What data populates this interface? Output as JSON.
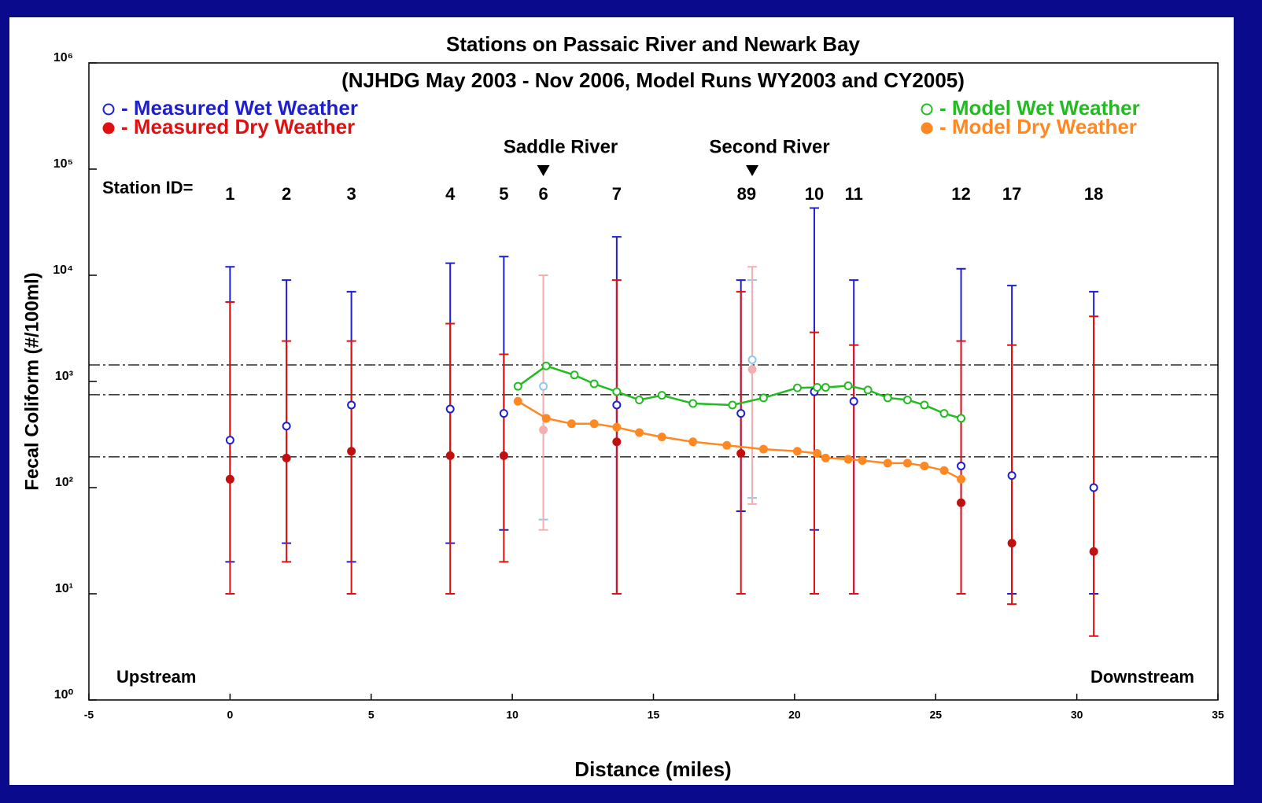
{
  "chart_data": {
    "type": "scatter",
    "title": "Stations on Passaic River and Newark Bay",
    "subtitle": "(NJHDG May 2003 - Nov 2006, Model Runs WY2003 and CY2005)",
    "x_label": "Distance (miles)",
    "y_label": "Fecal Coliform (#/100ml)",
    "xlim": [
      -5,
      35
    ],
    "xticks": [
      -5,
      0,
      5,
      10,
      15,
      20,
      25,
      30,
      35
    ],
    "ylim": [
      1,
      1000000
    ],
    "y_log": true,
    "yticks": [
      {
        "value": 1,
        "label": "10⁰"
      },
      {
        "value": 10,
        "label": "10¹"
      },
      {
        "value": 100,
        "label": "10²"
      },
      {
        "value": 1000,
        "label": "10³"
      },
      {
        "value": 10000,
        "label": "10⁴"
      },
      {
        "value": 100000,
        "label": "10⁵"
      },
      {
        "value": 1000000,
        "label": "10⁶"
      }
    ],
    "reference_lines": [
      1430,
      750,
      195
    ],
    "station_prefix": "Station ID=",
    "stations": [
      {
        "x": 0,
        "label": "1"
      },
      {
        "x": 2,
        "label": "2"
      },
      {
        "x": 4.3,
        "label": "3"
      },
      {
        "x": 7.8,
        "label": "4"
      },
      {
        "x": 9.7,
        "label": "5"
      },
      {
        "x": 11.1,
        "label": "6"
      },
      {
        "x": 13.7,
        "label": "7"
      },
      {
        "x": 18.3,
        "label": "89"
      },
      {
        "x": 20.7,
        "label": "10"
      },
      {
        "x": 22.1,
        "label": "11"
      },
      {
        "x": 25.9,
        "label": "12"
      },
      {
        "x": 27.7,
        "label": "17"
      },
      {
        "x": 30.6,
        "label": "18"
      }
    ],
    "rivers": [
      {
        "x": 11.1,
        "label": "Saddle River"
      },
      {
        "x": 18.5,
        "label": "Second River"
      }
    ],
    "upstream_label": "Upstream",
    "downstream_label": "Downstream",
    "series": [
      {
        "name": "- Measured Wet Weather",
        "kind": "measured",
        "marker": "open",
        "legend_corner": "top-left",
        "color": "#1f1fd0",
        "x": [
          0,
          2,
          4.3,
          7.8,
          9.7,
          11.1,
          13.7,
          18.1,
          18.5,
          20.7,
          22.1,
          25.9,
          27.7,
          30.6
        ],
        "values": [
          280,
          380,
          600,
          550,
          500,
          900,
          600,
          500,
          1600,
          800,
          650,
          160,
          130,
          100
        ],
        "lower": [
          20,
          30,
          20,
          30,
          40,
          50,
          10,
          60,
          80,
          40,
          10,
          10,
          10,
          10
        ],
        "upper": [
          12000,
          9000,
          7000,
          13000,
          15000,
          10000,
          23000,
          9000,
          9000,
          43000,
          9000,
          11500,
          8000,
          7000
        ],
        "point_colors": [
          "#1f1fd0",
          "#1f1fd0",
          "#1f1fd0",
          "#1f1fd0",
          "#1f1fd0",
          "#8fc8e8",
          "#1f1fd0",
          "#1f1fd0",
          "#8fc8e8",
          "#1f1fd0",
          "#1f1fd0",
          "#1f1fd0",
          "#1f1fd0",
          "#1f1fd0"
        ]
      },
      {
        "name": "- Measured Dry Weather",
        "kind": "measured",
        "marker": "filled",
        "legend_corner": "top-left",
        "color": "#e01010",
        "x": [
          0,
          2,
          4.3,
          7.8,
          9.7,
          11.1,
          13.7,
          18.1,
          18.5,
          20.7,
          22.1,
          25.9,
          27.7,
          30.6
        ],
        "values": [
          120,
          190,
          220,
          200,
          200,
          350,
          270,
          210,
          1300,
          null,
          null,
          72,
          30,
          25
        ],
        "lower": [
          10,
          20,
          10,
          10,
          20,
          40,
          10,
          10,
          70,
          10,
          10,
          10,
          8,
          4
        ],
        "upper": [
          5600,
          2400,
          2400,
          3500,
          1800,
          10000,
          9000,
          7000,
          12000,
          2900,
          2200,
          2400,
          2200,
          4100
        ],
        "point_colors": [
          "#c01010",
          "#c01010",
          "#c01010",
          "#c01010",
          "#c01010",
          "#f4b0b0",
          "#c01010",
          "#c01010",
          "#f4b0b0",
          "#c01010",
          "#c01010",
          "#c01010",
          "#c01010",
          "#c01010"
        ]
      },
      {
        "name": "- Model Wet Weather",
        "kind": "model",
        "marker": "open",
        "legend_corner": "top-right",
        "color": "#22bb22",
        "x": [
          10.2,
          11.2,
          12.2,
          12.9,
          13.7,
          14.5,
          15.3,
          16.4,
          17.8,
          18.9,
          20.1,
          20.8,
          21.1,
          21.9,
          22.6,
          23.3,
          24,
          24.6,
          25.3,
          25.9
        ],
        "values": [
          900,
          1400,
          1150,
          950,
          800,
          670,
          740,
          620,
          600,
          700,
          870,
          880,
          880,
          910,
          830,
          700,
          670,
          600,
          500,
          450
        ]
      },
      {
        "name": "- Model Dry Weather",
        "kind": "model",
        "marker": "filled",
        "legend_corner": "top-right",
        "color": "#ff8822",
        "x": [
          10.2,
          11.2,
          12.1,
          12.9,
          13.7,
          14.5,
          15.3,
          16.4,
          17.6,
          18.9,
          20.1,
          20.8,
          21.1,
          21.9,
          22.4,
          23.3,
          24,
          24.6,
          25.3,
          25.9
        ],
        "values": [
          650,
          450,
          400,
          400,
          370,
          330,
          300,
          270,
          250,
          230,
          220,
          210,
          190,
          185,
          180,
          170,
          170,
          160,
          145,
          120
        ]
      }
    ]
  }
}
